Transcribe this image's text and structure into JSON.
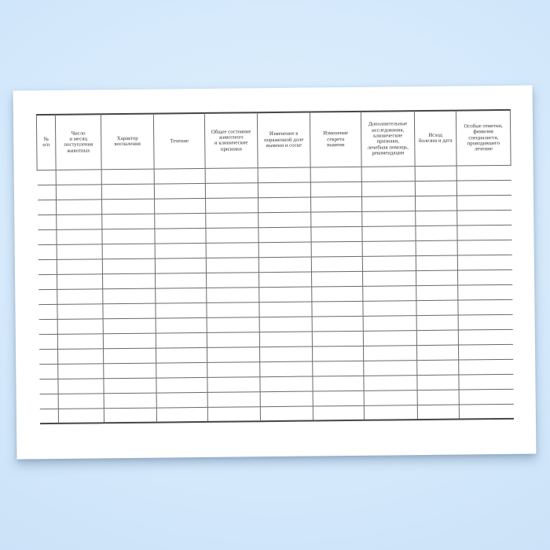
{
  "background": {
    "center_color": "#e3f1fe",
    "mid_color": "#d6eafc",
    "edge_color": "#cbe2f8"
  },
  "page": {
    "paper_color": "#ffffff"
  },
  "table": {
    "line_color": "#6a6a6a",
    "outer_line_color": "#454545",
    "text_color": "#333333",
    "empty_row_count": 17,
    "columns": [
      {
        "label": "№\nп/п"
      },
      {
        "label": "Число\nи месяц\nпоступления\nживотных"
      },
      {
        "label": "Характер\nвоспаления"
      },
      {
        "label": "Течение"
      },
      {
        "label": "Общее состояние\nживотного\nи клинические\nпризнаки"
      },
      {
        "label": "Изменение в\nпораженной доле\nвымени и соске"
      },
      {
        "label": "Изменение\nсекрета\nвымени"
      },
      {
        "label": "Дополнительные\nисследования,\nклинические\nпризнаки,\nлечебная помощь,\nрекомендации"
      },
      {
        "label": "Исход\nболезни и дата"
      },
      {
        "label": "Особые отметки,\nфамилия\nспециалиста,\nпроводившего\nлечение"
      }
    ]
  }
}
